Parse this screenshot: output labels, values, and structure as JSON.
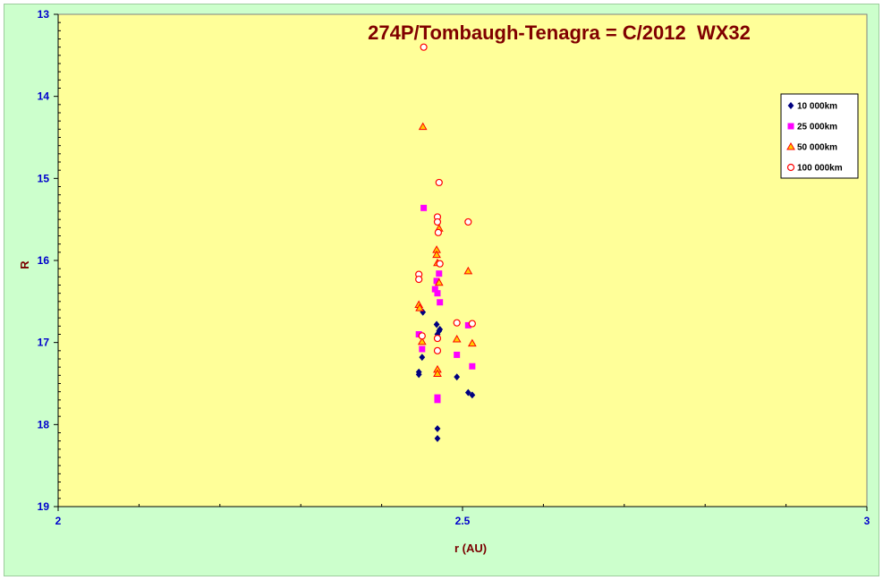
{
  "chart_data": {
    "type": "scatter",
    "title": "274P/Tombaugh-Tenagra = C/2012  WX32",
    "xlabel": "r (AU)",
    "ylabel": "R",
    "xlim": [
      2,
      3
    ],
    "ylim": [
      13,
      19
    ],
    "y_inverted": true,
    "x_ticks": [
      "2",
      "2.5",
      "3"
    ],
    "y_ticks": [
      "13",
      "14",
      "15",
      "16",
      "17",
      "18",
      "19"
    ],
    "grid": false,
    "legend_position": "top-right",
    "series": [
      {
        "name": "10 000km",
        "marker": "diamond",
        "color": "#000080",
        "points": [
          [
            2.446,
            17.36
          ],
          [
            2.446,
            17.39
          ],
          [
            2.45,
            17.18
          ],
          [
            2.451,
            16.63
          ],
          [
            2.468,
            16.78
          ],
          [
            2.469,
            16.9
          ],
          [
            2.471,
            16.86
          ],
          [
            2.472,
            16.84
          ],
          [
            2.469,
            18.05
          ],
          [
            2.469,
            18.17
          ],
          [
            2.493,
            17.42
          ],
          [
            2.507,
            17.61
          ],
          [
            2.512,
            17.64
          ]
        ]
      },
      {
        "name": "25 000km",
        "marker": "square",
        "color": "#ff00ff",
        "points": [
          [
            2.446,
            16.9
          ],
          [
            2.45,
            17.08
          ],
          [
            2.452,
            15.36
          ],
          [
            2.466,
            16.35
          ],
          [
            2.468,
            16.25
          ],
          [
            2.469,
            16.4
          ],
          [
            2.471,
            16.16
          ],
          [
            2.472,
            16.51
          ],
          [
            2.469,
            17.67
          ],
          [
            2.469,
            17.7
          ],
          [
            2.493,
            17.15
          ],
          [
            2.507,
            16.79
          ],
          [
            2.512,
            17.29
          ]
        ]
      },
      {
        "name": "50 000km",
        "marker": "triangle",
        "color": "#ff0000",
        "points": [
          [
            2.446,
            16.54
          ],
          [
            2.447,
            16.58
          ],
          [
            2.45,
            16.99
          ],
          [
            2.451,
            14.37
          ],
          [
            2.468,
            15.87
          ],
          [
            2.468,
            15.93
          ],
          [
            2.469,
            16.03
          ],
          [
            2.471,
            16.27
          ],
          [
            2.471,
            15.61
          ],
          [
            2.469,
            17.33
          ],
          [
            2.469,
            17.38
          ],
          [
            2.493,
            16.96
          ],
          [
            2.507,
            16.13
          ],
          [
            2.512,
            17.01
          ]
        ]
      },
      {
        "name": "100 000km",
        "marker": "circle",
        "color": "#ff0000",
        "points": [
          [
            2.446,
            16.17
          ],
          [
            2.446,
            16.23
          ],
          [
            2.45,
            16.92
          ],
          [
            2.452,
            13.4
          ],
          [
            2.469,
            15.47
          ],
          [
            2.469,
            15.53
          ],
          [
            2.47,
            15.66
          ],
          [
            2.471,
            15.05
          ],
          [
            2.472,
            16.04
          ],
          [
            2.469,
            16.95
          ],
          [
            2.469,
            17.1
          ],
          [
            2.493,
            16.76
          ],
          [
            2.507,
            15.53
          ],
          [
            2.512,
            16.77
          ]
        ]
      }
    ]
  }
}
